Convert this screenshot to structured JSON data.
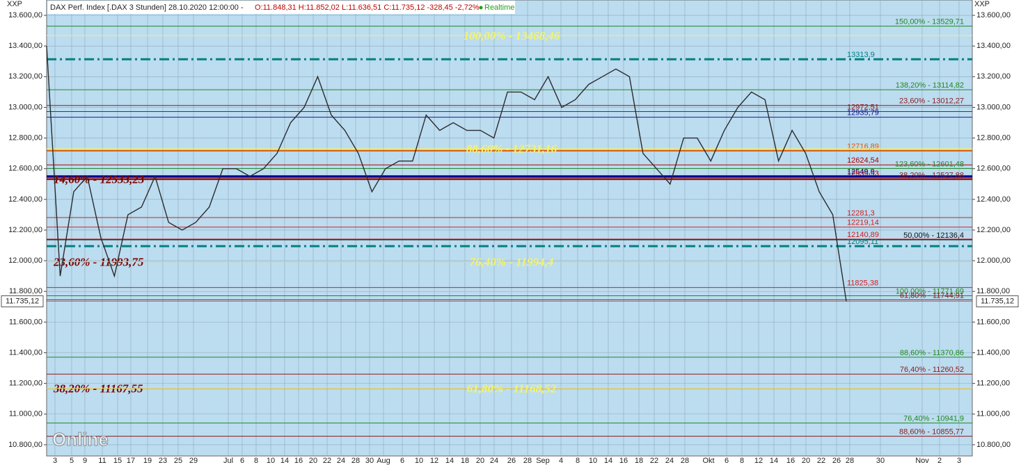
{
  "chart_data": {
    "type": "line",
    "title": "DAX Perf. Index [.DAX 3 Stunden] 28.10.2020 12:00:00 -",
    "quote": "O:11.848,31 H:11.852,02 L:11.636,51 C:11.735,12 -328,45 -2,72%",
    "status": "Realtime",
    "y_axis_label": "XXP",
    "watermark": "Online",
    "date_labels": [
      "3",
      "5",
      "9",
      "11",
      "15",
      "17",
      "19",
      "23",
      "25",
      "29",
      "Jul",
      "6",
      "8",
      "10",
      "14",
      "16",
      "20",
      "22",
      "24",
      "28",
      "30",
      "Aug",
      "6",
      "10",
      "12",
      "14",
      "18",
      "20",
      "24",
      "26",
      "28",
      "Sep",
      "4",
      "8",
      "10",
      "14",
      "16",
      "18",
      "22",
      "24",
      "28",
      "Okt",
      "6",
      "8",
      "12",
      "14",
      "16",
      "20",
      "22",
      "26",
      "28",
      "30",
      "Nov",
      "2",
      "3"
    ],
    "values": [
      13400,
      11900,
      12450,
      12550,
      12150,
      11900,
      12300,
      12350,
      12550,
      12250,
      12200,
      12250,
      12350,
      12600,
      12600,
      12550,
      12600,
      12700,
      12900,
      13000,
      13200,
      12950,
      12850,
      12700,
      12450,
      12600,
      12650,
      12650,
      12950,
      12850,
      12900,
      12850,
      12850,
      12800,
      13100,
      13100,
      13050,
      13200,
      13000,
      13050,
      13150,
      13200,
      13250,
      13200,
      12700,
      12600,
      12500,
      12800,
      12800,
      12650,
      12850,
      13000,
      13100,
      13050,
      12650,
      12850,
      12700,
      12450,
      12300,
      11735.12
    ],
    "color": "#2b2b2b",
    "ylim": [
      10727,
      13700
    ],
    "yticks": [
      {
        "value": 13600,
        "label": "13.600,00"
      },
      {
        "value": 13400,
        "label": "13.400,00"
      },
      {
        "value": 13200,
        "label": "13.200,00"
      },
      {
        "value": 13000,
        "label": "13.000,00"
      },
      {
        "value": 12800,
        "label": "12.800,00"
      },
      {
        "value": 12600,
        "label": "12.600,00"
      },
      {
        "value": 12400,
        "label": "12.400,00"
      },
      {
        "value": 12200,
        "label": "12.200,00"
      },
      {
        "value": 12000,
        "label": "12.000,00"
      },
      {
        "value": 11800,
        "label": "11.800,00"
      },
      {
        "value": 11600,
        "label": "11.600,00"
      },
      {
        "value": 11400,
        "label": "11.400,00"
      },
      {
        "value": 11200,
        "label": "11.200,00"
      },
      {
        "value": 11000,
        "label": "11.000,00"
      },
      {
        "value": 10800,
        "label": "10.800,00"
      }
    ],
    "grid": true,
    "last": {
      "value": 11735.12,
      "label": "11.735,12"
    },
    "levels": [
      {
        "value": 13529.71,
        "label": "150,00% - 13529,71",
        "color": "#1f8a1f"
      },
      {
        "value": 13313.9,
        "label": "13313,9",
        "color": "#008080",
        "style": "dashdot"
      },
      {
        "value": 13114.82,
        "label": "138,20% - 13114,82",
        "color": "#1f8a1f"
      },
      {
        "value": 13012.27,
        "label": "23,60% - 13012,27",
        "color": "#8b1a1a"
      },
      {
        "value": 12972.51,
        "label": "12972,51",
        "color": "#8b1a1a"
      },
      {
        "value": 12935.79,
        "label": "12935,79",
        "color": "#1a1a8b"
      },
      {
        "value": 12716.89,
        "label": "12716,89",
        "color": "#e05a00",
        "width": 2
      },
      {
        "value": 12624.54,
        "label": "12624,54",
        "color": "#b00000"
      },
      {
        "value": 12601.48,
        "label": "123,60% - 12601,48",
        "color": "#1f8a1f"
      },
      {
        "value": 12549.9,
        "label": "12549,9",
        "color": "#00008b",
        "width": 3
      },
      {
        "value": 12539.93,
        "label": "12539,93",
        "color": "#b00000"
      },
      {
        "value": 12527.88,
        "label": "38,20% - 12527,88",
        "color": "#8b1a1a"
      },
      {
        "value": 12281.3,
        "label": "12281,3",
        "color": "#d02020"
      },
      {
        "value": 12219.14,
        "label": "12219,14",
        "color": "#d02020"
      },
      {
        "value": 12140.89,
        "label": "12140,89",
        "color": "#d02020"
      },
      {
        "value": 12136.4,
        "label": "50,00% - 12136,4",
        "color": "#111111"
      },
      {
        "value": 12095.11,
        "label": "12095,11",
        "color": "#008080",
        "style": "dashdot"
      },
      {
        "value": 11825.38,
        "label": "11825,38",
        "color": "#d02020"
      },
      {
        "value": 11771.69,
        "label": "100,00% - 11771,69",
        "color": "#1f8a1f"
      },
      {
        "value": 11744.91,
        "label": "61,80% - 11744,91",
        "color": "#8b1a1a"
      },
      {
        "value": 11370.86,
        "label": "88,60% - 11370,86",
        "color": "#1f8a1f"
      },
      {
        "value": 11260.52,
        "label": "76,40% - 11260,52",
        "color": "#8b1a1a"
      },
      {
        "value": 10941.9,
        "label": "76,40% - 10941,9",
        "color": "#1f8a1f"
      },
      {
        "value": 10855.77,
        "label": "88,60% - 10855,77",
        "color": "#8b1a1a"
      }
    ],
    "fib_left": [
      {
        "value": 12533.23,
        "label": "14,60% - 12533,23",
        "color": "#7a0000"
      },
      {
        "value": 11993.75,
        "label": "23,60% - 11993,75",
        "color": "#7a0000"
      },
      {
        "value": 11167.55,
        "label": "38,20% - 11167,55",
        "color": "#7a0000"
      }
    ],
    "fib_center": [
      {
        "value": 13468.46,
        "label": "100,00% - 13468,46",
        "color": "#f4f46a"
      },
      {
        "value": 12731.16,
        "label": "88,60% - 12731,16",
        "color": "#f4f46a"
      },
      {
        "value": 11994.4,
        "label": "76,40% - 11994,4",
        "color": "#f4f46a"
      },
      {
        "value": 11168.52,
        "label": "61,80% - 11168,52",
        "color": "#f4f46a"
      }
    ]
  }
}
